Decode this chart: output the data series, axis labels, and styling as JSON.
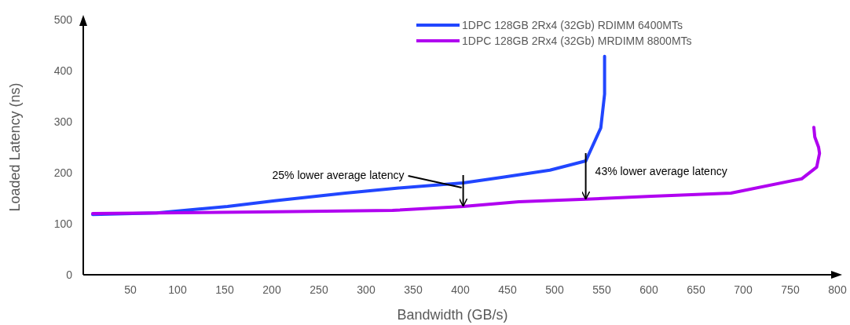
{
  "chart_data": {
    "type": "line",
    "xlabel": "Bandwidth (GB/s)",
    "ylabel": "Loaded Latency (ns)",
    "xlim": [
      0,
      800
    ],
    "xticks": [
      50,
      100,
      150,
      200,
      250,
      300,
      350,
      400,
      450,
      500,
      550,
      600,
      650,
      700,
      750,
      800
    ],
    "ylim": [
      0,
      500
    ],
    "yticks": [
      0,
      100,
      200,
      300,
      400,
      500
    ],
    "grid": false,
    "legend": "top right",
    "marker": "none",
    "line_style": "solid",
    "series": [
      {
        "name": "1DPC 128GB 2Rx4 (32Gb) RDIMM 6400MTs",
        "color": "#2146ff",
        "x": [
          10,
          78,
          153,
          203,
          278,
          328,
          403,
          445,
          495,
          533,
          549,
          553,
          553,
          553
        ],
        "values": [
          118,
          121,
          134,
          145,
          160,
          169,
          180,
          191,
          205,
          223,
          288,
          354,
          400,
          428
        ]
      },
      {
        "name": "1DPC 128GB 2Rx4 (32Gb) MRDIMM 8800MTs",
        "color": "#b000f0",
        "x": [
          10,
          187,
          328,
          403,
          462,
          533,
          603,
          687,
          762,
          778,
          781,
          780,
          776,
          775
        ],
        "values": [
          120,
          123,
          126,
          134,
          143,
          148,
          154,
          160,
          188,
          211,
          238,
          250,
          270,
          289
        ]
      }
    ],
    "annotations": [
      {
        "text": "25% lower average latency",
        "x": 403,
        "y": 180
      },
      {
        "text": "43% lower average latency",
        "x": 533,
        "y": 223
      }
    ]
  }
}
